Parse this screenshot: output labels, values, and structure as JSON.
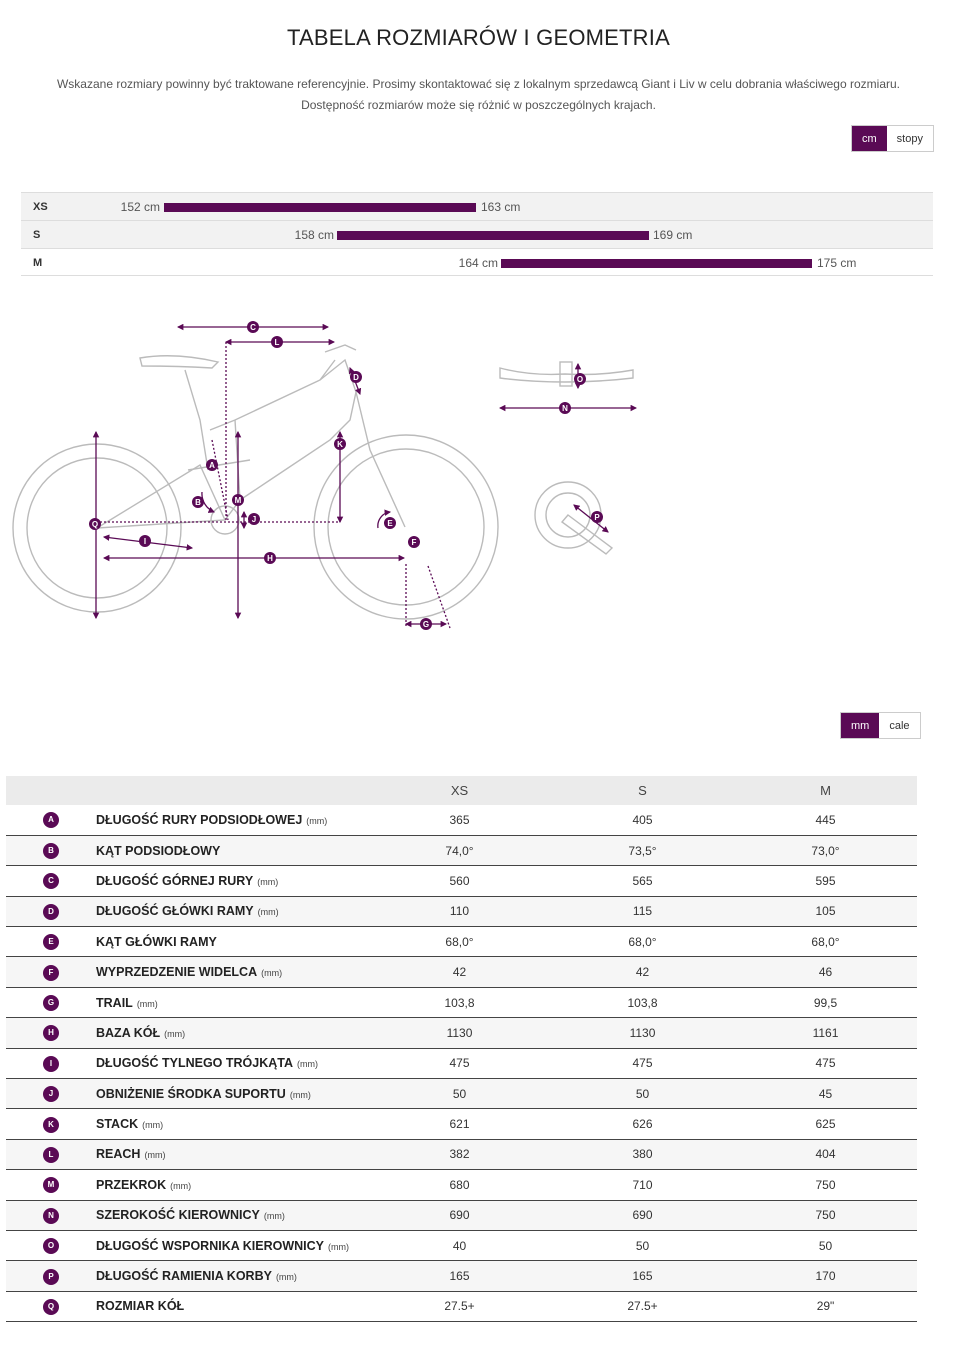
{
  "page_title": "TABELA ROZMIARÓW I GEOMETRIA",
  "notice_line1": "Wskazane rozmiary powinny być traktowane referencyjnie. Prosimy skontaktować się z lokalnym sprzedawcą Giant i Liv w celu dobrania właściwego rozmiaru.",
  "notice_line2": "Dostępność rozmiarów może się różnić w poszczególnych krajach.",
  "height_unit_toggle": {
    "active": "cm",
    "inactive": "stopy"
  },
  "rider_sizes": [
    {
      "size": "XS",
      "min": "152 cm",
      "max": "163 cm"
    },
    {
      "size": "S",
      "min": "158 cm",
      "max": "169 cm"
    },
    {
      "size": "M",
      "min": "164 cm",
      "max": "175 cm"
    }
  ],
  "geometry_unit_toggle": {
    "active": "mm",
    "inactive": "cale"
  },
  "table": {
    "columns": [
      "",
      "",
      "XS",
      "S",
      "M"
    ],
    "rows": [
      {
        "letter": "A",
        "name": "DŁUGOŚĆ RURY PODSIODŁOWEJ",
        "unit": "(mm)",
        "xs": "365",
        "s": "405",
        "m": "445"
      },
      {
        "letter": "B",
        "name": "KĄT PODSIODŁOWY",
        "unit": "",
        "xs": "74,0°",
        "s": "73,5°",
        "m": "73,0°"
      },
      {
        "letter": "C",
        "name": "DŁUGOŚĆ GÓRNEJ RURY",
        "unit": "(mm)",
        "xs": "560",
        "s": "565",
        "m": "595"
      },
      {
        "letter": "D",
        "name": "DŁUGOŚĆ GŁÓWKI RAMY",
        "unit": "(mm)",
        "xs": "110",
        "s": "115",
        "m": "105"
      },
      {
        "letter": "E",
        "name": "KĄT GŁÓWKI RAMY",
        "unit": "",
        "xs": "68,0°",
        "s": "68,0°",
        "m": "68,0°"
      },
      {
        "letter": "F",
        "name": "WYPRZEDZENIE WIDELCA",
        "unit": "(mm)",
        "xs": "42",
        "s": "42",
        "m": "46"
      },
      {
        "letter": "G",
        "name": "TRAIL",
        "unit": "(mm)",
        "xs": "103,8",
        "s": "103,8",
        "m": "99,5"
      },
      {
        "letter": "H",
        "name": "BAZA KÓŁ",
        "unit": "(mm)",
        "xs": "1130",
        "s": "1130",
        "m": "1161"
      },
      {
        "letter": "I",
        "name": "DŁUGOŚĆ TYLNEGO TRÓJKĄTA",
        "unit": "(mm)",
        "xs": "475",
        "s": "475",
        "m": "475"
      },
      {
        "letter": "J",
        "name": "OBNIŻENIE ŚRODKA SUPORTU",
        "unit": "(mm)",
        "xs": "50",
        "s": "50",
        "m": "45"
      },
      {
        "letter": "K",
        "name": "STACK",
        "unit": "(mm)",
        "xs": "621",
        "s": "626",
        "m": "625"
      },
      {
        "letter": "L",
        "name": "REACH",
        "unit": "(mm)",
        "xs": "382",
        "s": "380",
        "m": "404"
      },
      {
        "letter": "M",
        "name": "PRZEKROK",
        "unit": "(mm)",
        "xs": "680",
        "s": "710",
        "m": "750"
      },
      {
        "letter": "N",
        "name": "SZEROKOŚĆ KIEROWNICY",
        "unit": "(mm)",
        "xs": "690",
        "s": "690",
        "m": "750"
      },
      {
        "letter": "O",
        "name": "DŁUGOŚĆ WSPORNIKA KIEROWNICY",
        "unit": "(mm)",
        "xs": "40",
        "s": "50",
        "m": "50"
      },
      {
        "letter": "P",
        "name": "DŁUGOŚĆ RAMIENIA KORBY",
        "unit": "(mm)",
        "xs": "165",
        "s": "165",
        "m": "170"
      },
      {
        "letter": "Q",
        "name": "ROZMIAR KÓŁ",
        "unit": "",
        "xs": "27.5+",
        "s": "27.5+",
        "m": "29\""
      }
    ]
  }
}
